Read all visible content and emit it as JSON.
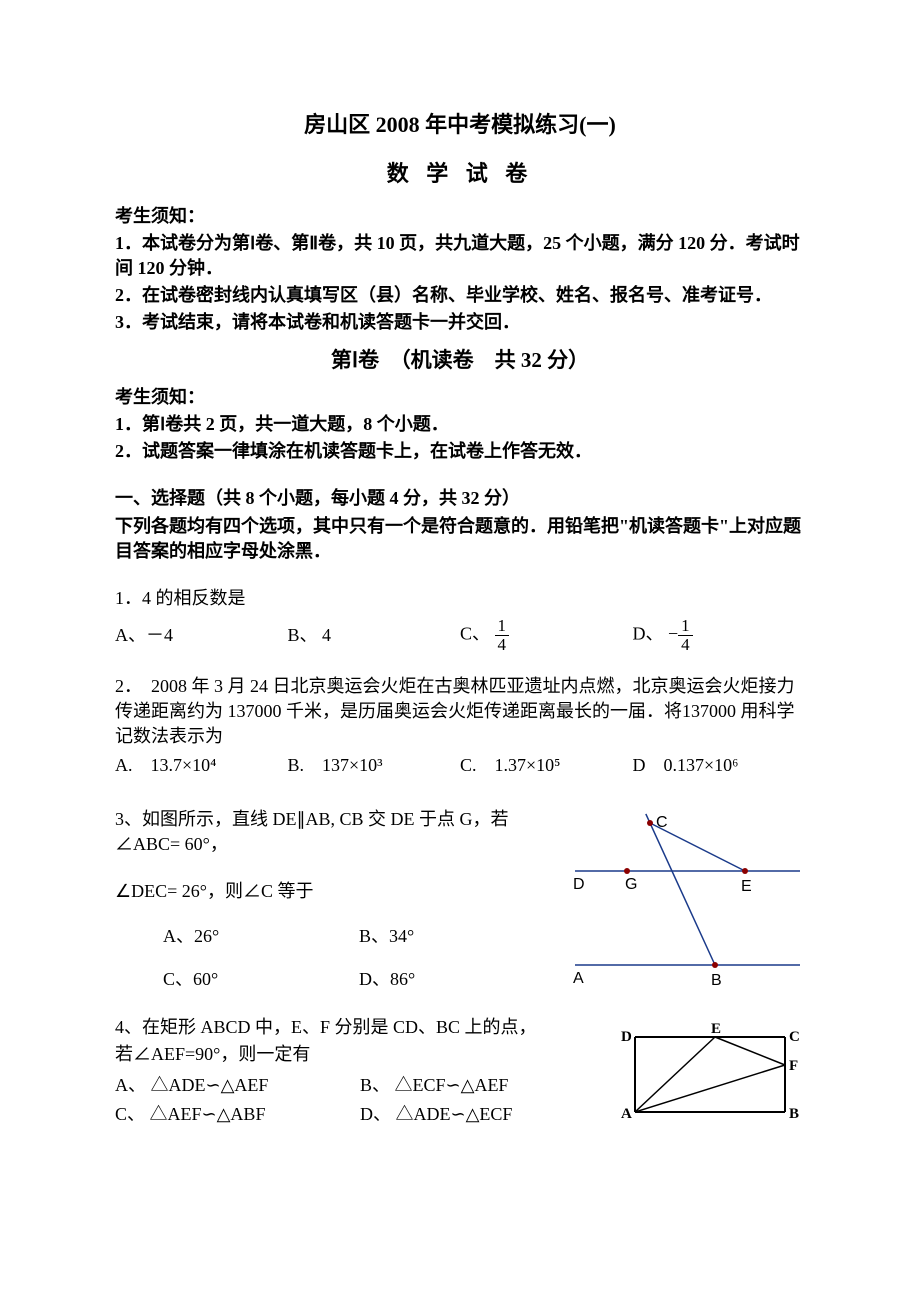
{
  "title_main": "房山区 2008 年中考模拟练习(一)",
  "title_sub": "数  学  试  卷",
  "instr1_head": "考生须知：",
  "instr1_l1": "1．本试卷分为第Ⅰ卷、第Ⅱ卷，共 10 页，共九道大题，25 个小题，满分 120 分．考试时间 120 分钟．",
  "instr1_l2": "2．在试卷密封线内认真填写区（县）名称、毕业学校、姓名、报名号、准考证号．",
  "instr1_l3": "3．考试结束，请将本试卷和机读答题卡一并交回．",
  "section1_title": "第Ⅰ卷　（机读卷　共 32 分）",
  "instr2_head": "考生须知：",
  "instr2_l1": "1．第Ⅰ卷共 2 页，共一道大题，8 个小题．",
  "instr2_l2": "2．试题答案一律填涂在机读答题卡上，在试卷上作答无效．",
  "mc_head": "一、选择题（共 8 个小题，每小题 4 分，共 32 分）",
  "mc_instr": "下列各题均有四个选项，其中只有一个是符合题意的．用铅笔把\"机读答题卡\"上对应题目答案的相应字母处涂黑．",
  "q1_stem": "1．4 的相反数是",
  "q1_a": "A、－4",
  "q1_b": "B、 4",
  "q1_c_pre": "C、",
  "q1_c_num": "1",
  "q1_c_den": "4",
  "q1_d_pre": "D、",
  "q1_d_neg": "−",
  "q1_d_num": "1",
  "q1_d_den": "4",
  "q2_stem": "2．　2008 年 3 月 24 日北京奥运会火炬在古奥林匹亚遗址内点燃，北京奥运会火炬接力传递距离约为 137000 千米，是历届奥运会火炬传递距离最长的一届．将137000 用科学记数法表示为",
  "q2_a": "A.　13.7×10⁴",
  "q2_b": "B.　137×10³",
  "q2_c": "C.　1.37×10⁵",
  "q2_d": "D　0.137×10⁶",
  "q3_l1": "3、如图所示，直线 DE∥AB, CB 交 DE 于点 G，若 ∠ABC= 60°，",
  "q3_l2": "∠DEC= 26°，则∠C 等于",
  "q3_a": "A、26°",
  "q3_b": "B、34°",
  "q3_c": "C、60°",
  "q3_d": "D、86°",
  "q4_l1": "4、在矩形 ABCD 中，E、F 分别是 CD、BC 上的点，",
  "q4_l2": " 若∠AEF=90°，则一定有",
  "q4_a": "A、 △ADE∽△AEF",
  "q4_b": "B、 △ECF∽△AEF",
  "q4_c": "C、 △AEF∽△ABF",
  "q4_d": "D、 △ADE∽△ECF",
  "fig3": {
    "labels": {
      "C": "C",
      "D": "D",
      "G": "G",
      "E": "E",
      "A": "A",
      "B": "B"
    },
    "line_color": "#1a3a8a",
    "point_color": "#8b0000",
    "label_color": "#000000",
    "label_font": "16px sans-serif"
  },
  "fig4": {
    "labels": {
      "A": "A",
      "B": "B",
      "C": "C",
      "D": "D",
      "E": "E",
      "F": "F"
    },
    "line_color": "#000000"
  }
}
